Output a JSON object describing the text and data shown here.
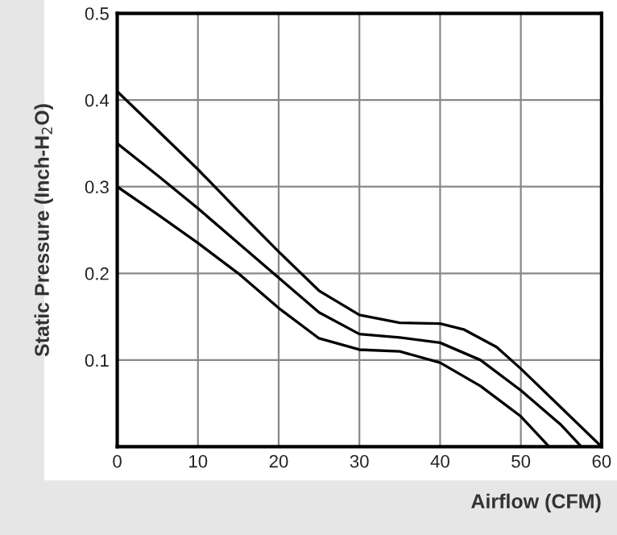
{
  "chart_data": {
    "type": "line",
    "xlabel": "Airflow (CFM)",
    "ylabel": "Static Pressure (Inch-H$_{2}$O)",
    "series": [
      {
        "color": "#000000",
        "x": [
          0,
          5,
          10,
          15,
          20,
          25,
          30,
          35,
          40,
          43,
          47,
          50,
          55,
          60
        ],
        "values": [
          0.41,
          0.365,
          0.32,
          0.272,
          0.225,
          0.18,
          0.152,
          0.143,
          0.142,
          0.135,
          0.115,
          0.09,
          0.045,
          0.0
        ]
      },
      {
        "color": "#000000",
        "x": [
          0,
          5,
          10,
          15,
          20,
          25,
          30,
          35,
          40,
          45,
          50,
          55,
          57.5
        ],
        "values": [
          0.35,
          0.313,
          0.275,
          0.235,
          0.195,
          0.155,
          0.13,
          0.126,
          0.12,
          0.1,
          0.065,
          0.025,
          0.0
        ]
      },
      {
        "color": "#000000",
        "x": [
          0,
          5,
          10,
          15,
          20,
          25,
          30,
          35,
          40,
          45,
          50,
          53.5
        ],
        "values": [
          0.3,
          0.268,
          0.235,
          0.2,
          0.16,
          0.125,
          0.112,
          0.11,
          0.097,
          0.07,
          0.035,
          0.0
        ]
      }
    ],
    "xlim": [
      0,
      60
    ],
    "xticks": [
      0,
      10,
      20,
      30,
      40,
      50,
      60
    ],
    "ylim": [
      0,
      0.5
    ],
    "yticks": [
      {
        "value": 0,
        "label": null
      },
      0.1,
      0.2,
      0.3,
      0.4,
      0.5
    ],
    "grid": true,
    "legend": false,
    "marker": "none",
    "line_style": "solid"
  }
}
